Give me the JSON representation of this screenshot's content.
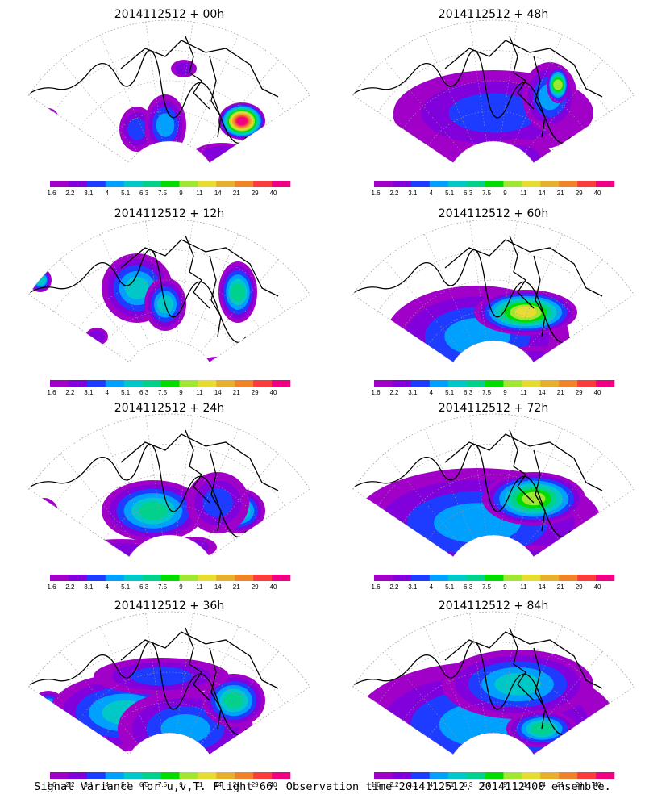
{
  "figure_caption": "Signal Variance for u,v,T. Flight 66. Observation time 2014112512. 2014112400 ensemble.",
  "colorbar": {
    "labels": [
      "1.6",
      "2.2",
      "3.1",
      "4",
      "5.1",
      "6.3",
      "7.5",
      "9",
      "11",
      "14",
      "21",
      "29",
      "40"
    ],
    "colors": [
      "#a000c8",
      "#8200dc",
      "#1e3cff",
      "#00a0ff",
      "#00c8c8",
      "#00d28c",
      "#00dc00",
      "#a0e632",
      "#e6dc32",
      "#e6af2d",
      "#f08228",
      "#fa3c3c",
      "#f00082"
    ]
  },
  "map_style": {
    "land_outline": "#000000",
    "grid_line": "#9a9a9a"
  },
  "chart_data": [
    {
      "type": "heatmap",
      "title": "2014112512 + 00h",
      "forecast_hour": 0
    },
    {
      "type": "heatmap",
      "title": "2014112512 + 48h",
      "forecast_hour": 48
    },
    {
      "type": "heatmap",
      "title": "2014112512 + 12h",
      "forecast_hour": 12
    },
    {
      "type": "heatmap",
      "title": "2014112512 + 60h",
      "forecast_hour": 60
    },
    {
      "type": "heatmap",
      "title": "2014112512 + 24h",
      "forecast_hour": 24
    },
    {
      "type": "heatmap",
      "title": "2014112512 + 72h",
      "forecast_hour": 72
    },
    {
      "type": "heatmap",
      "title": "2014112512 + 36h",
      "forecast_hour": 36
    },
    {
      "type": "heatmap",
      "title": "2014112512 + 84h",
      "forecast_hour": 84
    }
  ]
}
